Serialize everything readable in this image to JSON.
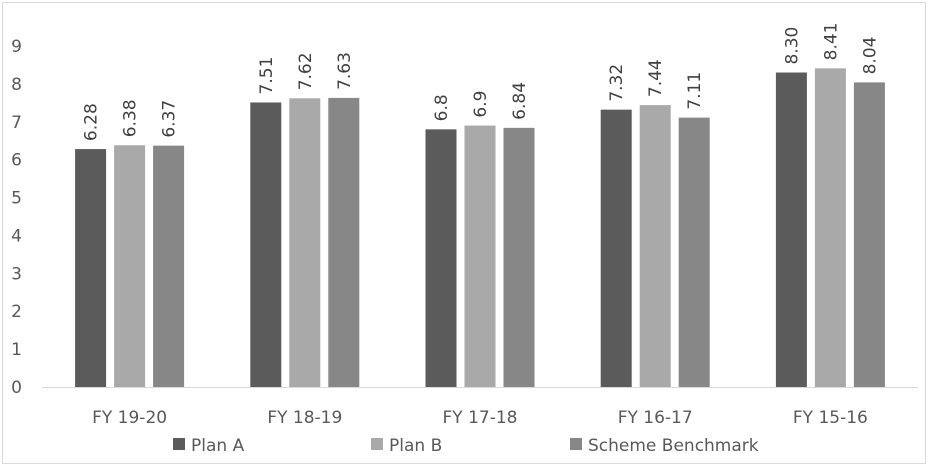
{
  "chart_data": {
    "type": "bar",
    "title": "",
    "xlabel": "",
    "ylabel": "",
    "categories": [
      "FY 19-20",
      "FY 18-19",
      "FY 17-18",
      "FY 16-17",
      "FY 15-16"
    ],
    "series": [
      {
        "name": "Plan A",
        "color": "#5b5b5b",
        "values": [
          6.28,
          7.51,
          6.8,
          7.32,
          8.3
        ],
        "labels": [
          "6.28",
          "7.51",
          "6.8",
          "7.32",
          "8.30"
        ]
      },
      {
        "name": "Plan B",
        "color": "#a9a9a9",
        "values": [
          6.38,
          7.62,
          6.9,
          7.44,
          8.41
        ],
        "labels": [
          "6.38",
          "7.62",
          "6.9",
          "7.44",
          "8.41"
        ]
      },
      {
        "name": "Scheme Benchmark",
        "color": "#878787",
        "values": [
          6.37,
          7.63,
          6.84,
          7.11,
          8.04
        ],
        "labels": [
          "6.37",
          "7.63",
          "6.84",
          "7.11",
          "8.04"
        ]
      }
    ],
    "ylim": [
      0,
      9
    ],
    "yticks": [
      "0",
      "1",
      "2",
      "3",
      "4",
      "5",
      "6",
      "7",
      "8",
      "9"
    ],
    "grid": false,
    "legend": "bottom"
  }
}
